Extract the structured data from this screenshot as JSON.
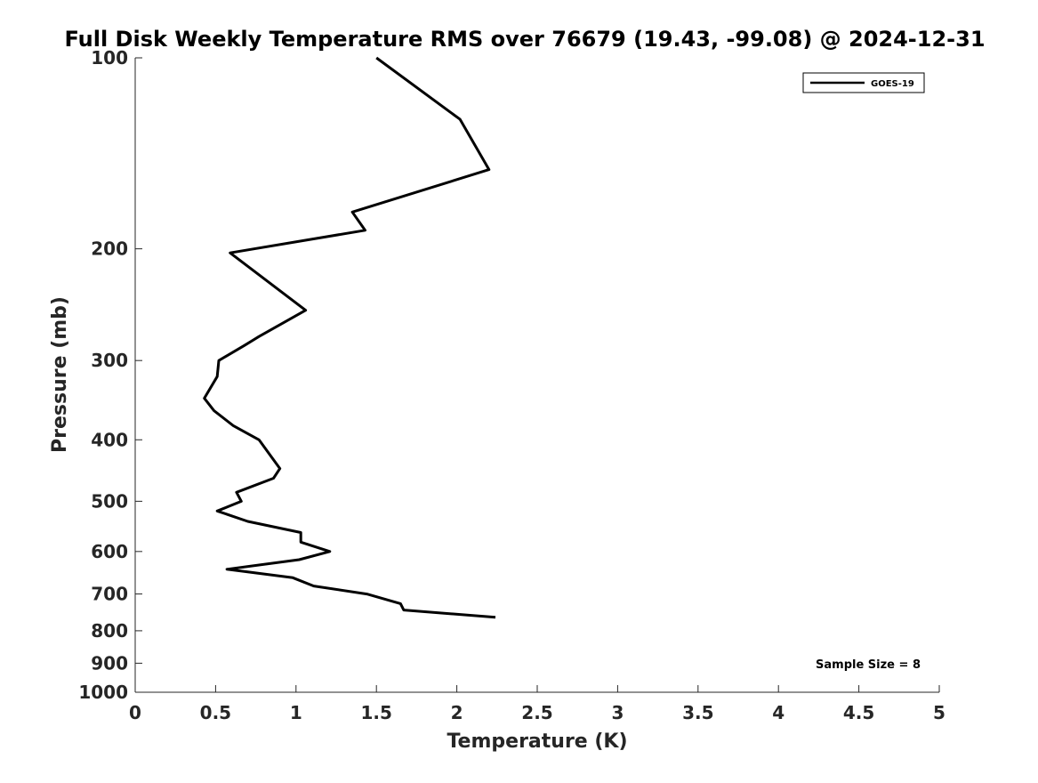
{
  "chart_data": {
    "type": "line",
    "title": "Full Disk Weekly Temperature RMS over 76679 (19.43, -99.08) @ 2024-12-31",
    "xlabel": "Temperature (K)",
    "ylabel": "Pressure (mb)",
    "xlim": [
      0,
      5
    ],
    "ylim": [
      100,
      1000
    ],
    "y_scale": "log",
    "y_reversed": true,
    "xticks": [
      "0",
      "0.5",
      "1",
      "1.5",
      "2",
      "2.5",
      "3",
      "3.5",
      "4",
      "4.5",
      "5"
    ],
    "yticks": [
      "100",
      "200",
      "300",
      "400",
      "500",
      "600",
      "700",
      "800",
      "900",
      "1000"
    ],
    "grid": false,
    "legend_position": "top-right",
    "series": [
      {
        "name": "GOES-19",
        "color": "#000000",
        "points": [
          {
            "x": 1.5,
            "p": 100
          },
          {
            "x": 2.02,
            "p": 125
          },
          {
            "x": 2.2,
            "p": 150
          },
          {
            "x": 1.35,
            "p": 175
          },
          {
            "x": 1.43,
            "p": 187
          },
          {
            "x": 0.59,
            "p": 203
          },
          {
            "x": 1.06,
            "p": 250
          },
          {
            "x": 0.77,
            "p": 275
          },
          {
            "x": 0.68,
            "p": 284
          },
          {
            "x": 0.52,
            "p": 300
          },
          {
            "x": 0.51,
            "p": 318
          },
          {
            "x": 0.43,
            "p": 344
          },
          {
            "x": 0.49,
            "p": 360
          },
          {
            "x": 0.61,
            "p": 380
          },
          {
            "x": 0.77,
            "p": 400
          },
          {
            "x": 0.9,
            "p": 444
          },
          {
            "x": 0.86,
            "p": 460
          },
          {
            "x": 0.63,
            "p": 484
          },
          {
            "x": 0.66,
            "p": 500
          },
          {
            "x": 0.51,
            "p": 518
          },
          {
            "x": 0.7,
            "p": 538
          },
          {
            "x": 1.03,
            "p": 560
          },
          {
            "x": 1.03,
            "p": 580
          },
          {
            "x": 1.21,
            "p": 600
          },
          {
            "x": 1.02,
            "p": 618
          },
          {
            "x": 0.57,
            "p": 640
          },
          {
            "x": 0.98,
            "p": 660
          },
          {
            "x": 1.11,
            "p": 680
          },
          {
            "x": 1.44,
            "p": 700
          },
          {
            "x": 1.65,
            "p": 725
          },
          {
            "x": 1.67,
            "p": 742
          },
          {
            "x": 2.24,
            "p": 762
          }
        ]
      }
    ],
    "annotations": [
      "Sample Size = 8"
    ]
  }
}
